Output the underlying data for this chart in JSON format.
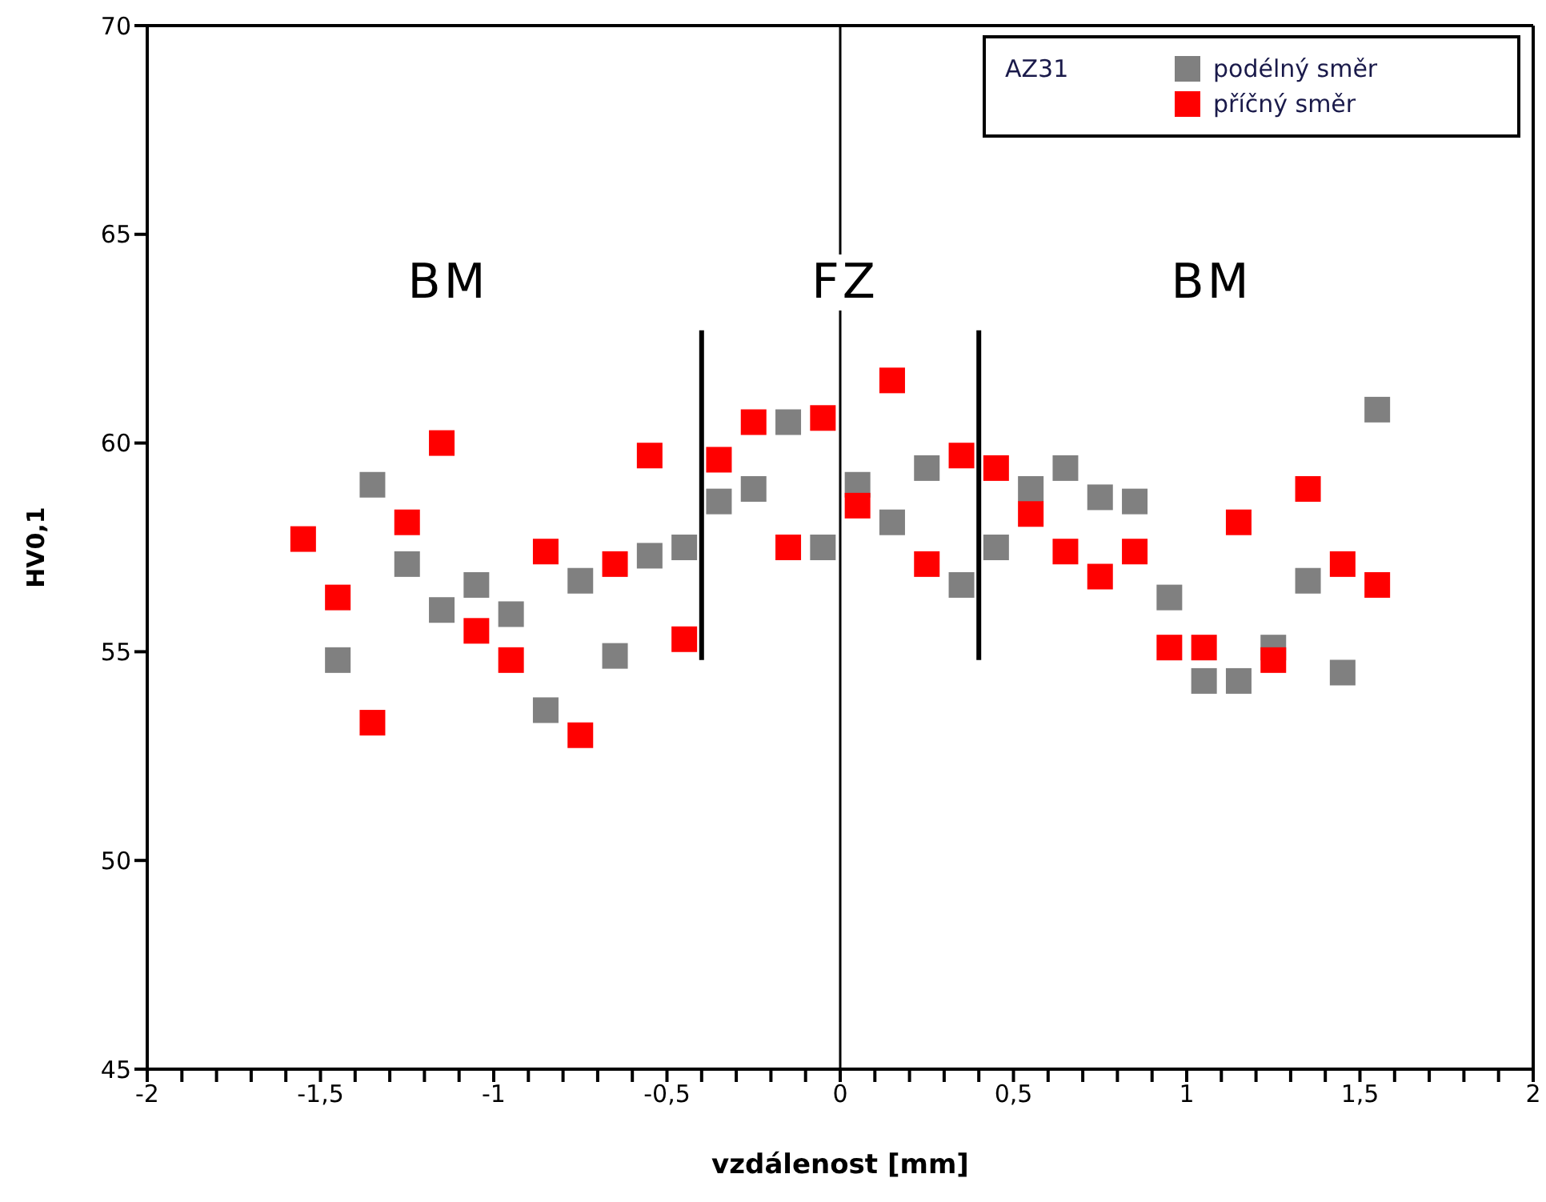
{
  "chart_data": {
    "type": "scatter",
    "xlabel": "vzdálenost [mm]",
    "ylabel": "HV0,1",
    "legend_title": "AZ31",
    "legend": "top right",
    "marker": "square",
    "grid": false,
    "xlim": [
      -2,
      2
    ],
    "ylim": [
      45,
      70
    ],
    "xticks": [
      {
        "value": -2,
        "label": "-2"
      },
      {
        "value": -1.9,
        "label": null
      },
      {
        "value": -1.8,
        "label": null
      },
      {
        "value": -1.7,
        "label": null
      },
      {
        "value": -1.6,
        "label": null
      },
      {
        "value": -1.5,
        "label": "-1,5"
      },
      {
        "value": -1.4,
        "label": null
      },
      {
        "value": -1.3,
        "label": null
      },
      {
        "value": -1.2,
        "label": null
      },
      {
        "value": -1.1,
        "label": null
      },
      {
        "value": -1,
        "label": "-1"
      },
      {
        "value": -0.9,
        "label": null
      },
      {
        "value": -0.8,
        "label": null
      },
      {
        "value": -0.7,
        "label": null
      },
      {
        "value": -0.6,
        "label": null
      },
      {
        "value": -0.5,
        "label": "-0,5"
      },
      {
        "value": -0.4,
        "label": null
      },
      {
        "value": -0.3,
        "label": null
      },
      {
        "value": -0.2,
        "label": null
      },
      {
        "value": -0.1,
        "label": null
      },
      {
        "value": 0,
        "label": "0"
      },
      {
        "value": 0.1,
        "label": null
      },
      {
        "value": 0.2,
        "label": null
      },
      {
        "value": 0.3,
        "label": null
      },
      {
        "value": 0.4,
        "label": null
      },
      {
        "value": 0.5,
        "label": "0,5"
      },
      {
        "value": 0.6,
        "label": null
      },
      {
        "value": 0.7,
        "label": null
      },
      {
        "value": 0.8,
        "label": null
      },
      {
        "value": 0.9,
        "label": null
      },
      {
        "value": 1,
        "label": "1"
      },
      {
        "value": 1.1,
        "label": null
      },
      {
        "value": 1.2,
        "label": null
      },
      {
        "value": 1.3,
        "label": null
      },
      {
        "value": 1.4,
        "label": null
      },
      {
        "value": 1.5,
        "label": "1,5"
      },
      {
        "value": 1.6,
        "label": null
      },
      {
        "value": 1.7,
        "label": null
      },
      {
        "value": 1.8,
        "label": null
      },
      {
        "value": 1.9,
        "label": null
      },
      {
        "value": 2,
        "label": "2"
      }
    ],
    "yticks": [
      45,
      50,
      55,
      60,
      65,
      70
    ],
    "series": [
      {
        "name": "podélný směr",
        "color": "#808080",
        "x": [
          -1.45,
          -1.35,
          -1.25,
          -1.15,
          -1.05,
          -0.95,
          -0.85,
          -0.75,
          -0.65,
          -0.55,
          -0.45,
          -0.35,
          -0.25,
          -0.15,
          -0.05,
          0.05,
          0.15,
          0.25,
          0.35,
          0.45,
          0.55,
          0.65,
          0.75,
          0.85,
          0.95,
          1.05,
          1.15,
          1.25,
          1.35,
          1.45,
          1.55
        ],
        "values": [
          54.8,
          59.0,
          57.1,
          56.0,
          56.6,
          55.9,
          53.6,
          56.7,
          54.9,
          57.3,
          57.5,
          58.6,
          58.9,
          60.5,
          57.5,
          59.0,
          58.1,
          59.4,
          56.6,
          57.5,
          58.9,
          59.4,
          58.7,
          58.6,
          56.3,
          54.3,
          54.3,
          55.1,
          56.7,
          54.5,
          60.8
        ]
      },
      {
        "name": "příčný směr",
        "color": "#ff0000",
        "x": [
          -1.55,
          -1.45,
          -1.35,
          -1.25,
          -1.15,
          -1.05,
          -0.95,
          -0.85,
          -0.75,
          -0.65,
          -0.55,
          -0.45,
          -0.35,
          -0.25,
          -0.15,
          -0.05,
          0.05,
          0.15,
          0.25,
          0.35,
          0.45,
          0.55,
          0.65,
          0.75,
          0.85,
          0.95,
          1.05,
          1.15,
          1.25,
          1.35,
          1.45,
          1.55
        ],
        "values": [
          57.7,
          56.3,
          53.3,
          58.1,
          60.0,
          55.5,
          54.8,
          57.4,
          53.0,
          57.1,
          59.7,
          55.3,
          59.6,
          60.5,
          57.5,
          60.6,
          58.5,
          61.5,
          57.1,
          59.7,
          59.4,
          58.3,
          57.4,
          56.8,
          57.4,
          55.1,
          55.1,
          58.1,
          54.8,
          58.9,
          57.1,
          56.6
        ]
      },
      {
        "type": "line",
        "marker": "none",
        "color": "#000000",
        "x": [
          -0.4,
          -0.4
        ],
        "values": [
          54.8,
          62.7
        ]
      },
      {
        "type": "line",
        "marker": "none",
        "color": "#000000",
        "x": [
          0.4,
          0.4
        ],
        "values": [
          54.8,
          62.7
        ]
      }
    ],
    "ref_lines": [
      {
        "axis": "x",
        "value": 0,
        "color": "#000000"
      }
    ],
    "annotations": [
      "BM",
      "FZ",
      "BM"
    ]
  }
}
